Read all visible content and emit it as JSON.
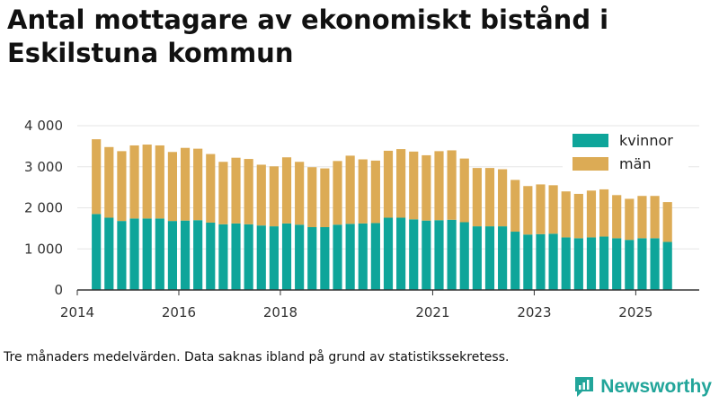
{
  "title": "Antal mottagare av ekonomiskt bistånd i Eskilstuna kommun",
  "caption": "Tre månaders medelvärden. Data saknas ibland på grund av statistikssekretess.",
  "brand": {
    "name": "Newsworthy",
    "logo_icon": "newsworthy-logo-icon"
  },
  "colors": {
    "kvinnor": "#0ea59a",
    "man": "#dcab55",
    "axis": "#333333",
    "grid": "#e6e6e6"
  },
  "chart_data": {
    "type": "bar",
    "stacked": true,
    "title": "Antal mottagare av ekonomiskt bistånd i Eskilstuna kommun",
    "xlabel": "",
    "ylabel": "",
    "ylim": [
      0,
      4000
    ],
    "yticks": [
      0,
      1000,
      2000,
      3000,
      4000
    ],
    "ytick_labels": [
      "0",
      "1 000",
      "2 000",
      "3 000",
      "4 000"
    ],
    "xticks": [
      {
        "label": "2014",
        "slot": -1.5
      },
      {
        "label": "2016",
        "slot": 6.5
      },
      {
        "label": "2018",
        "slot": 14.5
      },
      {
        "label": "2021",
        "slot": 26.5
      },
      {
        "label": "2023",
        "slot": 34.5
      },
      {
        "label": "2025",
        "slot": 42.5
      }
    ],
    "legend": [
      {
        "key": "kvinnor",
        "label": "kvinnor"
      },
      {
        "key": "man",
        "label": "män"
      }
    ],
    "legend_position": "top-right",
    "slots_before_first_bar": 1,
    "slots_after_last_bar": 2,
    "series": [
      {
        "name": "kvinnor",
        "values": [
          1850,
          1760,
          1680,
          1740,
          1740,
          1740,
          1680,
          1690,
          1700,
          1640,
          1600,
          1620,
          1600,
          1570,
          1550,
          1620,
          1590,
          1530,
          1530,
          1590,
          1610,
          1620,
          1630,
          1760,
          1760,
          1720,
          1690,
          1700,
          1710,
          1650,
          1550,
          1550,
          1550,
          1420,
          1350,
          1360,
          1370,
          1280,
          1260,
          1280,
          1300,
          1260,
          1220,
          1260,
          1260,
          1170
        ]
      },
      {
        "name": "män",
        "values": [
          1820,
          1720,
          1700,
          1780,
          1800,
          1780,
          1680,
          1770,
          1740,
          1670,
          1520,
          1600,
          1590,
          1480,
          1460,
          1610,
          1530,
          1460,
          1430,
          1550,
          1660,
          1560,
          1520,
          1630,
          1670,
          1650,
          1590,
          1680,
          1690,
          1550,
          1420,
          1420,
          1390,
          1260,
          1180,
          1210,
          1180,
          1120,
          1080,
          1140,
          1150,
          1050,
          1000,
          1030,
          1030,
          970
        ]
      }
    ]
  }
}
